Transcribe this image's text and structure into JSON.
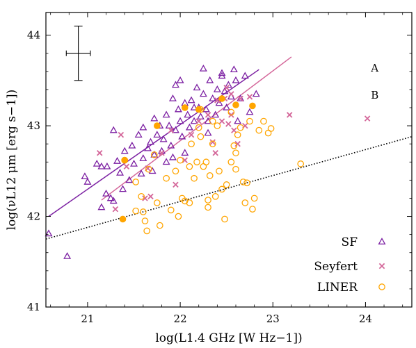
{
  "chart_data": {
    "type": "scatter",
    "xlabel": "log(L1.4 GHz [W Hz−1])",
    "ylabel": "log(νL12 μm [erg s−1])",
    "xlim": [
      20.55,
      24.5
    ],
    "ylim": [
      41.0,
      44.25
    ],
    "xticks": [
      "21",
      "22",
      "23",
      "24"
    ],
    "yticks": [
      "41",
      "42",
      "43",
      "44"
    ],
    "grid": false,
    "legend_position": "bottom-right",
    "colors": {
      "sf": "#7b1fa2",
      "seyfert": "#d4679a",
      "liner": "#ffa500",
      "reference": "#000000"
    },
    "legend": [
      {
        "label": "SF",
        "marker": "triangle-open",
        "color": "#7b1fa2"
      },
      {
        "label": "Seyfert",
        "marker": "x",
        "color": "#d4679a"
      },
      {
        "label": "LINER",
        "marker": "circle-open",
        "color": "#ffa500"
      }
    ],
    "annotations": [
      "A",
      "B"
    ],
    "error_bar": {
      "x": 20.9,
      "y": 43.8,
      "xerr": 0.13,
      "yerr": 0.3
    },
    "lines": [
      {
        "name": "A",
        "style": "dotted",
        "color": "#000000",
        "x": [
          20.55,
          24.5
        ],
        "y": [
          41.75,
          42.88
        ]
      },
      {
        "name": "SF fit",
        "style": "solid",
        "color": "#7b1fa2",
        "x": [
          20.58,
          22.85
        ],
        "y": [
          42.0,
          43.62
        ]
      },
      {
        "name": "Seyfert fit",
        "style": "solid",
        "color": "#d4679a",
        "x": [
          21.15,
          23.2
        ],
        "y": [
          42.18,
          43.76
        ]
      }
    ],
    "series": [
      {
        "name": "SF",
        "marker": "triangle-open",
        "color": "#7b1fa2",
        "points": [
          [
            20.58,
            41.81
          ],
          [
            20.78,
            41.56
          ],
          [
            20.97,
            42.44
          ],
          [
            21.0,
            42.38
          ],
          [
            21.1,
            42.58
          ],
          [
            21.15,
            42.55
          ],
          [
            21.2,
            42.25
          ],
          [
            21.21,
            42.55
          ],
          [
            21.25,
            42.2
          ],
          [
            21.28,
            42.17
          ],
          [
            21.32,
            42.61
          ],
          [
            21.35,
            42.48
          ],
          [
            21.38,
            42.3
          ],
          [
            21.4,
            42.72
          ],
          [
            21.45,
            42.4
          ],
          [
            21.5,
            42.58
          ],
          [
            21.55,
            42.9
          ],
          [
            21.58,
            42.47
          ],
          [
            21.6,
            42.64
          ],
          [
            21.65,
            42.75
          ],
          [
            21.68,
            42.82
          ],
          [
            21.7,
            42.5
          ],
          [
            21.72,
            42.68
          ],
          [
            21.75,
            42.9
          ],
          [
            21.78,
            43.0
          ],
          [
            21.8,
            42.72
          ],
          [
            21.82,
            42.85
          ],
          [
            21.85,
            43.12
          ],
          [
            21.88,
            43.0
          ],
          [
            21.9,
            42.78
          ],
          [
            21.92,
            43.3
          ],
          [
            21.95,
            42.95
          ],
          [
            21.98,
            43.18
          ],
          [
            22.0,
            43.05
          ],
          [
            22.02,
            42.88
          ],
          [
            22.05,
            43.25
          ],
          [
            22.08,
            43.12
          ],
          [
            22.1,
            42.98
          ],
          [
            22.12,
            43.28
          ],
          [
            22.15,
            43.05
          ],
          [
            22.18,
            43.42
          ],
          [
            22.2,
            43.2
          ],
          [
            22.22,
            43.1
          ],
          [
            22.25,
            43.35
          ],
          [
            22.28,
            43.18
          ],
          [
            22.3,
            43.05
          ],
          [
            22.32,
            43.5
          ],
          [
            22.35,
            43.3
          ],
          [
            22.38,
            43.12
          ],
          [
            22.4,
            43.4
          ],
          [
            22.42,
            43.25
          ],
          [
            22.45,
            43.55
          ],
          [
            22.48,
            43.38
          ],
          [
            22.5,
            43.2
          ],
          [
            22.52,
            43.45
          ],
          [
            22.55,
            43.32
          ],
          [
            22.58,
            43.62
          ],
          [
            22.6,
            43.5
          ],
          [
            22.65,
            43.3
          ],
          [
            22.7,
            43.55
          ],
          [
            22.75,
            43.15
          ],
          [
            22.82,
            43.35
          ],
          [
            22.25,
            43.63
          ],
          [
            22.45,
            43.58
          ],
          [
            21.95,
            43.45
          ],
          [
            21.72,
            43.08
          ],
          [
            21.6,
            42.98
          ],
          [
            21.48,
            42.78
          ],
          [
            21.28,
            42.95
          ],
          [
            21.15,
            42.1
          ],
          [
            21.85,
            42.6
          ],
          [
            22.05,
            42.7
          ],
          [
            22.3,
            42.92
          ],
          [
            22.0,
            43.5
          ],
          [
            22.15,
            43.2
          ],
          [
            21.92,
            42.65
          ],
          [
            22.62,
            43.05
          ]
        ]
      },
      {
        "name": "Seyfert",
        "marker": "x",
        "color": "#d4679a",
        "points": [
          [
            21.13,
            42.7
          ],
          [
            21.3,
            42.08
          ],
          [
            21.36,
            42.9
          ],
          [
            21.42,
            42.55
          ],
          [
            21.62,
            42.2
          ],
          [
            21.65,
            42.53
          ],
          [
            21.68,
            42.22
          ],
          [
            21.8,
            42.7
          ],
          [
            21.95,
            42.35
          ],
          [
            22.05,
            42.62
          ],
          [
            22.12,
            42.9
          ],
          [
            22.2,
            43.05
          ],
          [
            22.3,
            43.12
          ],
          [
            22.35,
            42.82
          ],
          [
            22.4,
            43.28
          ],
          [
            22.45,
            43.05
          ],
          [
            22.5,
            43.42
          ],
          [
            22.52,
            43.02
          ],
          [
            22.55,
            43.35
          ],
          [
            22.58,
            42.95
          ],
          [
            22.62,
            42.8
          ],
          [
            22.65,
            43.3
          ],
          [
            22.7,
            43.0
          ],
          [
            22.75,
            43.32
          ],
          [
            22.48,
            43.3
          ],
          [
            22.55,
            43.12
          ],
          [
            23.18,
            43.12
          ],
          [
            24.02,
            43.08
          ],
          [
            22.38,
            42.7
          ],
          [
            21.9,
            42.95
          ]
        ]
      },
      {
        "name": "LINER",
        "marker": "circle-open",
        "color": "#ffa500",
        "points": [
          [
            21.4,
            42.62
          ],
          [
            21.52,
            42.38
          ],
          [
            21.58,
            42.22
          ],
          [
            21.6,
            42.05
          ],
          [
            21.62,
            41.95
          ],
          [
            21.64,
            41.84
          ],
          [
            21.66,
            42.52
          ],
          [
            21.72,
            42.68
          ],
          [
            21.75,
            42.15
          ],
          [
            21.78,
            41.9
          ],
          [
            21.85,
            42.42
          ],
          [
            21.9,
            42.07
          ],
          [
            21.95,
            42.5
          ],
          [
            21.98,
            42.0
          ],
          [
            22.02,
            42.2
          ],
          [
            22.05,
            42.17
          ],
          [
            22.1,
            42.15
          ],
          [
            22.12,
            42.8
          ],
          [
            22.15,
            42.42
          ],
          [
            22.18,
            42.6
          ],
          [
            22.2,
            42.98
          ],
          [
            22.22,
            42.88
          ],
          [
            22.25,
            42.55
          ],
          [
            22.28,
            42.6
          ],
          [
            22.3,
            42.1
          ],
          [
            22.32,
            42.45
          ],
          [
            22.35,
            42.8
          ],
          [
            22.38,
            42.22
          ],
          [
            22.42,
            42.5
          ],
          [
            22.45,
            42.3
          ],
          [
            22.48,
            41.97
          ],
          [
            22.5,
            42.35
          ],
          [
            22.55,
            42.6
          ],
          [
            22.58,
            42.78
          ],
          [
            22.6,
            42.52
          ],
          [
            22.62,
            42.9
          ],
          [
            22.65,
            42.98
          ],
          [
            22.68,
            42.38
          ],
          [
            22.7,
            42.15
          ],
          [
            22.72,
            42.37
          ],
          [
            22.75,
            43.05
          ],
          [
            22.78,
            42.08
          ],
          [
            22.8,
            42.2
          ],
          [
            22.85,
            42.95
          ],
          [
            22.9,
            43.05
          ],
          [
            22.95,
            42.92
          ],
          [
            22.98,
            42.97
          ],
          [
            23.3,
            42.58
          ],
          [
            22.55,
            43.15
          ],
          [
            22.6,
            42.7
          ],
          [
            22.4,
            43.0
          ],
          [
            22.3,
            42.18
          ],
          [
            22.1,
            42.55
          ],
          [
            22.0,
            42.62
          ],
          [
            22.22,
            43.18
          ],
          [
            22.35,
            43.05
          ],
          [
            21.52,
            42.06
          ]
        ]
      },
      {
        "name": "LINER (filled)",
        "marker": "circle-filled",
        "color": "#ffa500",
        "points": [
          [
            21.38,
            41.97
          ],
          [
            21.4,
            42.62
          ],
          [
            21.75,
            43.0
          ],
          [
            22.05,
            43.2
          ],
          [
            22.2,
            43.18
          ],
          [
            22.45,
            43.3
          ],
          [
            22.6,
            43.23
          ],
          [
            22.78,
            43.22
          ]
        ]
      }
    ]
  }
}
